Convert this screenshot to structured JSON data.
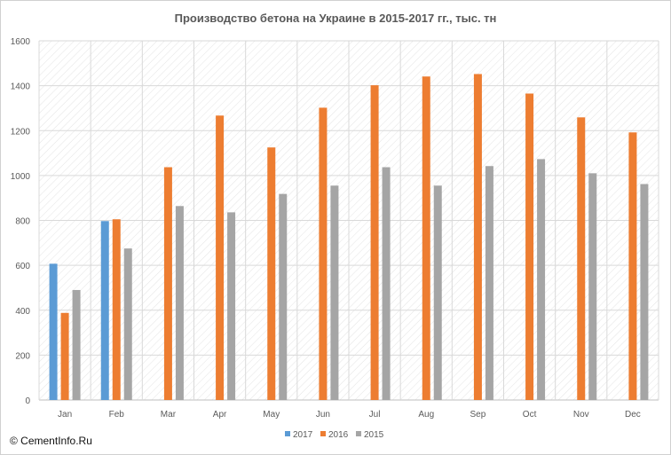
{
  "chart_data": {
    "type": "bar",
    "title": "Производство бетона на Украине в 2015-2017  гг., тыс. тн",
    "categories": [
      "Jan",
      "Feb",
      "Mar",
      "Apr",
      "May",
      "Jun",
      "Jul",
      "Aug",
      "Sep",
      "Oct",
      "Nov",
      "Dec"
    ],
    "series": [
      {
        "name": "2017",
        "color": "#5b9bd5",
        "values": [
          607,
          797,
          null,
          null,
          null,
          null,
          null,
          null,
          null,
          null,
          null,
          null
        ]
      },
      {
        "name": "2016",
        "color": "#ed7d31",
        "values": [
          388,
          805,
          1037,
          1267,
          1125,
          1302,
          1402,
          1441,
          1452,
          1365,
          1259,
          1192
        ]
      },
      {
        "name": "2015",
        "color": "#a5a5a5",
        "values": [
          490,
          675,
          864,
          836,
          918,
          955,
          1037,
          955,
          1042,
          1073,
          1010,
          962
        ]
      }
    ],
    "ylim": [
      0,
      1600
    ],
    "yticks": [
      0,
      200,
      400,
      600,
      800,
      1000,
      1200,
      1400,
      1600
    ],
    "grid": true,
    "legend_position": "bottom"
  },
  "copyright": "© CementInfo.Ru"
}
